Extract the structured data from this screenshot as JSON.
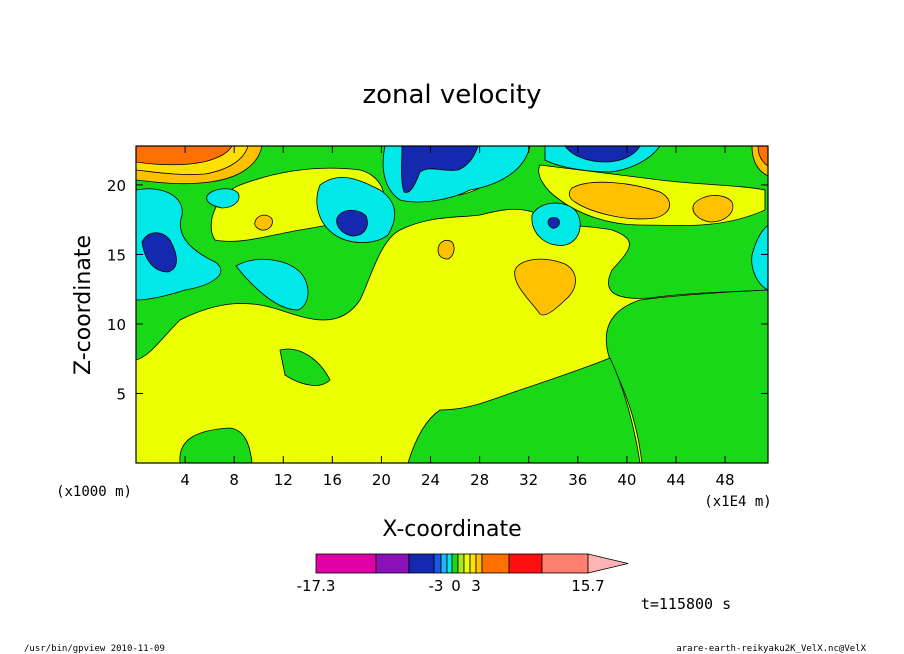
{
  "chart_data": {
    "type": "heatmap",
    "title": "zonal velocity",
    "xlabel": "X-coordinate",
    "ylabel": "Z-coordinate",
    "x_unit_note": "(x1000 m)",
    "x_scale_note": "(x1E4 m)",
    "x_ticks": [
      "4",
      "8",
      "12",
      "16",
      "20",
      "24",
      "28",
      "32",
      "36",
      "40",
      "44",
      "48"
    ],
    "y_ticks": [
      "5",
      "10",
      "15",
      "20"
    ],
    "xlim": [
      0,
      51.5
    ],
    "ylim": [
      0,
      22.8
    ],
    "colorbar": {
      "colors": [
        "#e000a8",
        "#8a10b8",
        "#1428b0",
        "#1858e8",
        "#20b4ff",
        "#00e8e8",
        "#18d818",
        "#a8e818",
        "#ecff00",
        "#ffe000",
        "#ffc000",
        "#ff7000",
        "#ff1010",
        "#ff8070",
        "#ffb4b4"
      ],
      "tick_labels": [
        "-17.3",
        "-3",
        "0",
        "3",
        "15.7"
      ],
      "min": -17.3,
      "max": 15.7
    },
    "time_label": "t=115800 s"
  },
  "footer": {
    "left": "/usr/bin/gpview   2010-11-09",
    "right": "arare-earth-reikyaku2K_VelX.nc@VelX"
  }
}
